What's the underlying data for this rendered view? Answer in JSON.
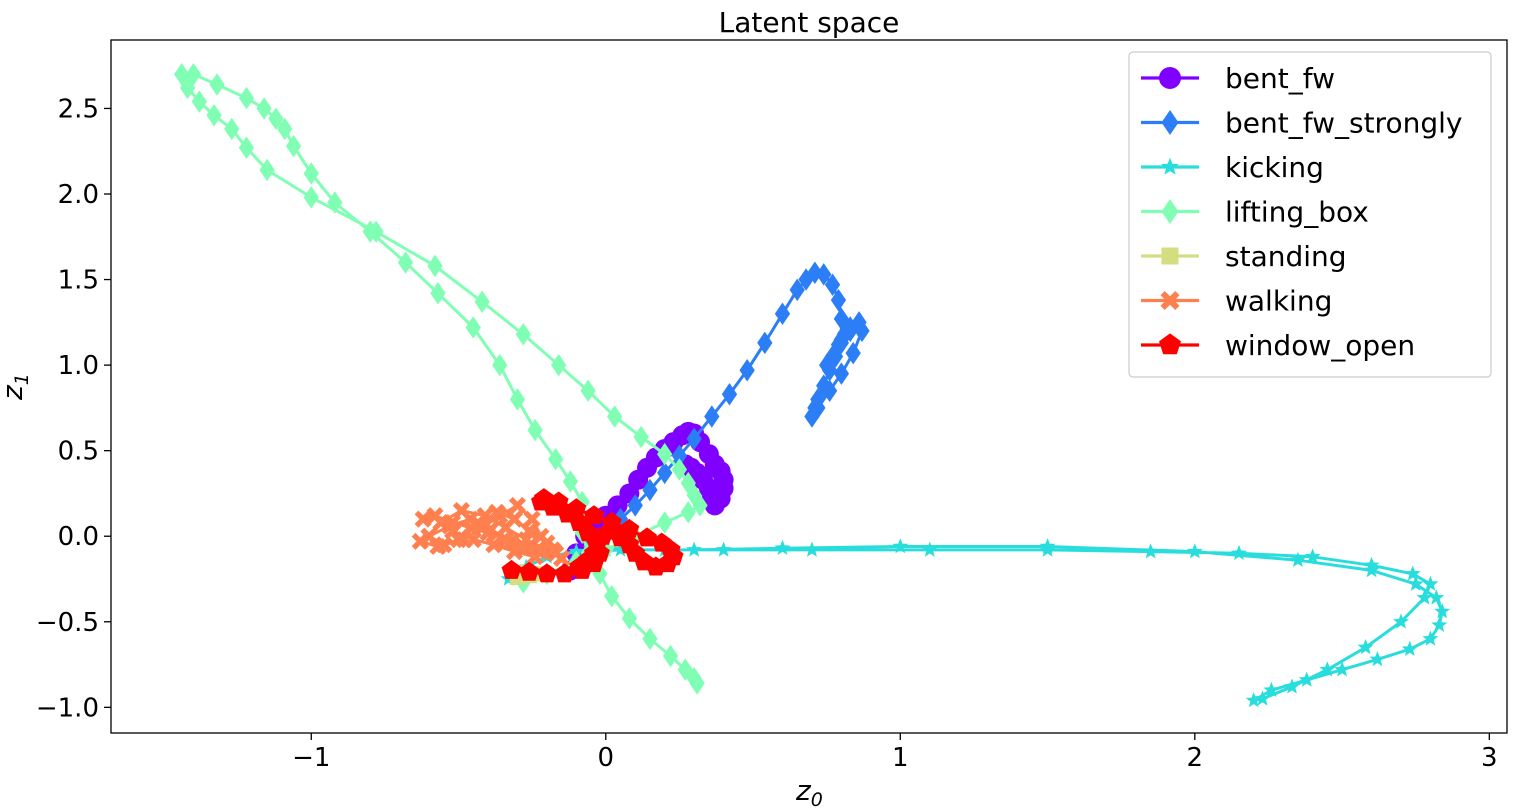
{
  "chart_data": {
    "type": "line",
    "title": "Latent space",
    "xlabel": {
      "base": "z",
      "sub": "0"
    },
    "ylabel": {
      "base": "z",
      "sub": "1"
    },
    "xlim": [
      -1.68,
      3.06
    ],
    "ylim": [
      -1.15,
      2.9
    ],
    "xticks": [
      {
        "value": -1,
        "label": "−1"
      },
      {
        "value": 0,
        "label": "0"
      },
      {
        "value": 1,
        "label": "1"
      },
      {
        "value": 2,
        "label": "2"
      },
      {
        "value": 3,
        "label": "3"
      }
    ],
    "yticks": [
      {
        "value": -1.0,
        "label": "−1.0"
      },
      {
        "value": -0.5,
        "label": "−0.5"
      },
      {
        "value": 0.0,
        "label": "0.0"
      },
      {
        "value": 0.5,
        "label": "0.5"
      },
      {
        "value": 1.0,
        "label": "1.0"
      },
      {
        "value": 1.5,
        "label": "1.5"
      },
      {
        "value": 2.0,
        "label": "2.0"
      },
      {
        "value": 2.5,
        "label": "2.5"
      }
    ],
    "grid": false,
    "legend_position": "top-right",
    "series": [
      {
        "name": "bent_fw",
        "color": "#8000ff",
        "marker": "circle",
        "x": [
          -0.12,
          -0.1,
          -0.07,
          -0.04,
          0.0,
          0.04,
          0.08,
          0.11,
          0.14,
          0.17,
          0.2,
          0.23,
          0.26,
          0.28,
          0.3,
          0.32,
          0.35,
          0.37,
          0.39,
          0.4,
          0.4,
          0.39,
          0.37,
          0.36,
          0.35,
          0.33,
          0.31,
          0.29,
          0.27
        ],
        "y": [
          -0.2,
          -0.1,
          0.0,
          0.07,
          0.12,
          0.18,
          0.25,
          0.33,
          0.4,
          0.46,
          0.51,
          0.55,
          0.59,
          0.61,
          0.6,
          0.55,
          0.48,
          0.42,
          0.38,
          0.33,
          0.28,
          0.22,
          0.18,
          0.22,
          0.28,
          0.33,
          0.37,
          0.4,
          0.42
        ]
      },
      {
        "name": "bent_fw_strongly",
        "color": "#2c7ef7",
        "marker": "diamond",
        "x": [
          -0.1,
          -0.05,
          0.0,
          0.05,
          0.1,
          0.15,
          0.2,
          0.25,
          0.3,
          0.36,
          0.42,
          0.48,
          0.54,
          0.6,
          0.65,
          0.68,
          0.71,
          0.74,
          0.77,
          0.79,
          0.8,
          0.8,
          0.78,
          0.76,
          0.74,
          0.72,
          0.71,
          0.7,
          0.72,
          0.76,
          0.8,
          0.84,
          0.87,
          0.86,
          0.83,
          0.8,
          0.77,
          0.75,
          0.77,
          0.79,
          0.81,
          0.83
        ],
        "y": [
          -0.14,
          -0.06,
          0.02,
          0.1,
          0.18,
          0.27,
          0.37,
          0.47,
          0.57,
          0.7,
          0.83,
          0.97,
          1.13,
          1.3,
          1.44,
          1.5,
          1.54,
          1.53,
          1.47,
          1.38,
          1.27,
          1.15,
          1.05,
          0.97,
          0.88,
          0.8,
          0.75,
          0.7,
          0.75,
          0.85,
          0.95,
          1.07,
          1.2,
          1.25,
          1.2,
          1.13,
          1.05,
          1.0,
          1.05,
          1.12,
          1.18,
          1.22
        ]
      },
      {
        "name": "kicking",
        "color": "#2adddd",
        "marker": "star",
        "x": [
          -0.33,
          -0.27,
          -0.2,
          -0.1,
          0.0,
          0.1,
          0.3,
          0.6,
          1.0,
          1.5,
          2.0,
          2.35,
          2.6,
          2.75,
          2.82,
          2.84,
          2.83,
          2.8,
          2.73,
          2.62,
          2.5,
          2.38,
          2.26,
          2.2,
          2.23,
          2.33,
          2.45,
          2.58,
          2.7,
          2.78,
          2.8,
          2.74,
          2.6,
          2.4,
          2.15,
          1.85,
          1.5,
          1.1,
          0.7,
          0.4,
          0.2,
          0.05,
          -0.05
        ],
        "y": [
          -0.25,
          -0.18,
          -0.12,
          -0.09,
          -0.08,
          -0.08,
          -0.08,
          -0.07,
          -0.06,
          -0.06,
          -0.09,
          -0.14,
          -0.2,
          -0.28,
          -0.36,
          -0.44,
          -0.52,
          -0.6,
          -0.66,
          -0.72,
          -0.78,
          -0.84,
          -0.9,
          -0.96,
          -0.95,
          -0.88,
          -0.78,
          -0.65,
          -0.5,
          -0.36,
          -0.28,
          -0.22,
          -0.17,
          -0.12,
          -0.1,
          -0.09,
          -0.08,
          -0.08,
          -0.08,
          -0.08,
          -0.08,
          -0.08,
          -0.09
        ]
      },
      {
        "name": "lifting_box",
        "color": "#80ffb4",
        "marker": "diamond",
        "x": [
          -0.28,
          -0.2,
          -0.1,
          0.0,
          0.1,
          0.2,
          0.28,
          0.32,
          0.3,
          0.28,
          0.25,
          0.2,
          0.12,
          0.03,
          -0.06,
          -0.16,
          -0.28,
          -0.42,
          -0.58,
          -0.78,
          -1.0,
          -1.15,
          -1.22,
          -1.27,
          -1.33,
          -1.38,
          -1.42,
          -1.44,
          -1.4,
          -1.32,
          -1.22,
          -1.16,
          -1.12,
          -1.09,
          -1.06,
          -1.0,
          -0.92,
          -0.8,
          -0.68,
          -0.57,
          -0.45,
          -0.36,
          -0.3,
          -0.24,
          -0.17,
          -0.12,
          -0.08,
          -0.08,
          -0.08,
          -0.06,
          -0.02,
          0.02,
          0.08,
          0.15,
          0.22,
          0.27,
          0.3,
          0.31
        ],
        "y": [
          -0.27,
          -0.22,
          -0.15,
          -0.08,
          0.0,
          0.08,
          0.14,
          0.18,
          0.24,
          0.31,
          0.39,
          0.48,
          0.58,
          0.7,
          0.85,
          1.0,
          1.18,
          1.37,
          1.58,
          1.78,
          1.98,
          2.14,
          2.27,
          2.38,
          2.46,
          2.54,
          2.62,
          2.7,
          2.7,
          2.64,
          2.56,
          2.5,
          2.44,
          2.38,
          2.28,
          2.12,
          1.95,
          1.78,
          1.6,
          1.42,
          1.22,
          1.0,
          0.8,
          0.62,
          0.45,
          0.32,
          0.2,
          0.1,
          0.02,
          -0.1,
          -0.22,
          -0.35,
          -0.48,
          -0.6,
          -0.7,
          -0.78,
          -0.83,
          -0.86
        ]
      },
      {
        "name": "standing",
        "color": "#d4dd80",
        "marker": "square",
        "x": [
          -0.3,
          -0.28,
          -0.26,
          -0.24
        ],
        "y": [
          -0.24,
          -0.21,
          -0.23,
          -0.22
        ]
      },
      {
        "name": "walking",
        "color": "#ff7f4e",
        "marker": "x",
        "x": [
          -0.62,
          -0.58,
          -0.52,
          -0.46,
          -0.4,
          -0.34,
          -0.28,
          -0.22,
          -0.17,
          -0.15,
          -0.2,
          -0.27,
          -0.34,
          -0.41,
          -0.49,
          -0.56,
          -0.6,
          -0.55,
          -0.48,
          -0.42,
          -0.36,
          -0.3,
          -0.25,
          -0.22,
          -0.26,
          -0.32,
          -0.39,
          -0.46,
          -0.53,
          -0.6,
          -0.63,
          -0.57,
          -0.5,
          -0.43,
          -0.37,
          -0.31,
          -0.26,
          -0.2,
          -0.18,
          -0.24,
          -0.31,
          -0.38,
          -0.45,
          -0.52
        ],
        "y": [
          0.1,
          0.12,
          0.08,
          0.05,
          0.02,
          -0.02,
          -0.06,
          -0.09,
          -0.1,
          -0.13,
          -0.08,
          -0.02,
          0.05,
          0.12,
          0.15,
          0.08,
          0.0,
          -0.05,
          -0.02,
          0.05,
          0.12,
          0.18,
          0.1,
          0.0,
          -0.06,
          -0.03,
          0.04,
          0.1,
          0.06,
          0.0,
          -0.03,
          -0.06,
          -0.02,
          0.07,
          0.14,
          0.1,
          0.03,
          -0.04,
          -0.08,
          -0.12,
          -0.09,
          -0.05,
          -0.02,
          0.03
        ]
      },
      {
        "name": "window_open",
        "color": "#ff0000",
        "marker": "pentagon",
        "x": [
          -0.32,
          -0.26,
          -0.2,
          -0.14,
          -0.08,
          -0.04,
          -0.02,
          -0.03,
          -0.06,
          -0.09,
          -0.13,
          -0.18,
          -0.22,
          -0.21,
          -0.16,
          -0.1,
          -0.04,
          0.02,
          0.08,
          0.14,
          0.19,
          0.22,
          0.23,
          0.21,
          0.17,
          0.13,
          0.1,
          0.08,
          0.05,
          0.02,
          -0.01,
          -0.03,
          -0.04,
          -0.06,
          -0.09
        ],
        "y": [
          -0.2,
          -0.21,
          -0.22,
          -0.22,
          -0.2,
          -0.16,
          -0.1,
          -0.04,
          0.02,
          0.08,
          0.13,
          0.17,
          0.2,
          0.22,
          0.2,
          0.16,
          0.12,
          0.08,
          0.04,
          -0.01,
          -0.04,
          -0.08,
          -0.12,
          -0.16,
          -0.18,
          -0.15,
          -0.1,
          -0.05,
          -0.01,
          0.03,
          0.0,
          -0.05,
          -0.1,
          -0.14,
          -0.18
        ]
      }
    ]
  }
}
